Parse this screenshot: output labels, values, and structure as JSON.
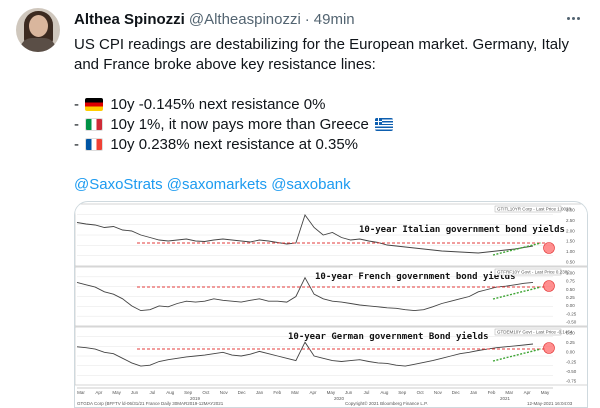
{
  "tweet": {
    "author_name": "Althea Spinozzi",
    "handle": "@Altheaspinozzi",
    "separator": "·",
    "time": "49min",
    "line1": "US CPI readings are destabilizing for the European market. Germany, Italy",
    "line2": "and France broke above key resistance lines:",
    "bullet_de": "- ",
    "bullet_de_text": "10y -0.145% next resistance 0%",
    "bullet_it": "- ",
    "bullet_it_text": "10y 1%, it now pays more than Greece",
    "bullet_fr": "- ",
    "bullet_fr_text": "10y 0.238% next resistance at 0.35%",
    "mentions": [
      "@SaxoStrats",
      "@saxomarkets",
      "@saxobank"
    ]
  },
  "icons": {
    "more": "more-horizontal-icon",
    "flag_de": "germany-flag-icon",
    "flag_it": "italy-flag-icon",
    "flag_fr": "france-flag-icon",
    "flag_gr": "greece-flag-icon"
  },
  "colors": {
    "link": "#1d9bf0",
    "resistance_line": "#e33b3b",
    "trend_arrow": "#3fa535",
    "highlight_circle": "#ff6a6a"
  },
  "chart_data": [
    {
      "type": "line",
      "title": "10-year Italian government bond yields",
      "legend": "GTITL10YR Corp - Last Price 1.0028",
      "y_ticks": [
        "3.00",
        "2.50",
        "2.00",
        "1.50",
        "1.00",
        "0.50"
      ],
      "last_value": 1.0028,
      "resistance": 1.0
    },
    {
      "type": "line",
      "title": "10-year French government bond yields",
      "legend": "GTFRF10Y Govt - Last Price 0.2382",
      "y_ticks": [
        "1.00",
        "0.75",
        "0.50",
        "0.25",
        "0.00",
        "-0.25",
        "-0.50"
      ],
      "last_value": 0.2382,
      "resistance": 0.238
    },
    {
      "type": "line",
      "title": "10-year German government Bond yields",
      "legend": "GTDEM10Y Govt - Last Price -0.1454",
      "y_ticks": [
        "0.50",
        "0.25",
        "0.00",
        "-0.25",
        "-0.50",
        "-0.75"
      ],
      "last_value": -0.1454,
      "resistance": -0.145
    }
  ],
  "x_axis": {
    "months": [
      "Mar",
      "Apr",
      "May",
      "Jun",
      "Jul",
      "Aug",
      "Sep",
      "Oct",
      "Nov",
      "Dec",
      "Jan",
      "Feb",
      "Mar",
      "Apr",
      "May",
      "Jun",
      "Jul",
      "Aug",
      "Sep",
      "Oct",
      "Nov",
      "Dec",
      "Jan",
      "Feb",
      "Mar",
      "Apr",
      "May"
    ],
    "years": [
      "2019",
      "2020",
      "2021"
    ]
  },
  "footer": {
    "left": "GTGDA Corp (BFFTV ld-06/31/21 France Daily 30MAR2019-12MAY2021",
    "right": "Copyright© 2021 Bloomberg Finance L.P.",
    "date": "12-May-2021 16:04:03"
  }
}
